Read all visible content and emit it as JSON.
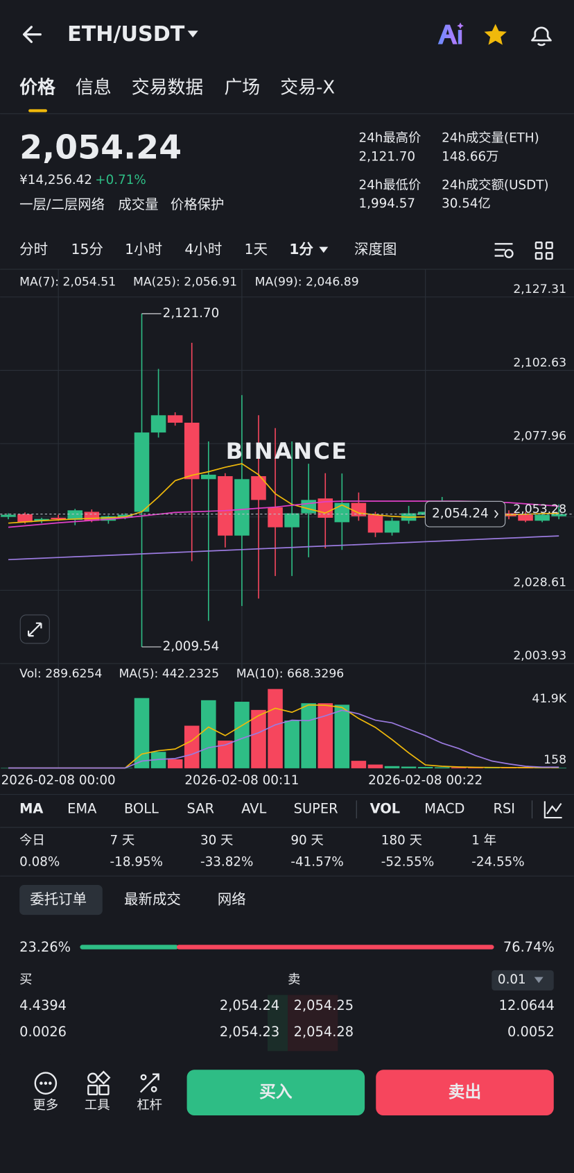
{
  "header": {
    "pair": "ETH/USDT"
  },
  "tabs": [
    "价格",
    "信息",
    "交易数据",
    "广场",
    "交易-X"
  ],
  "price": {
    "last": "2,054.24",
    "cny": "¥14,256.42",
    "change": "+0.71%",
    "links": [
      "一层/二层网络",
      "成交量",
      "价格保护"
    ]
  },
  "stats": [
    {
      "label": "24h最高价",
      "value": "2,121.70"
    },
    {
      "label": "24h成交量(ETH)",
      "value": "148.66万"
    },
    {
      "label": "24h最低价",
      "value": "1,994.57"
    },
    {
      "label": "24h成交额(USDT)",
      "value": "30.54亿"
    }
  ],
  "intervals": [
    "分时",
    "15分",
    "1小时",
    "4小时",
    "1天",
    "1分",
    "深度图"
  ],
  "watermark": "BINANCE",
  "chart_data": [
    {
      "type": "candlestick",
      "up_color": "#2ebd85",
      "down_color": "#f6465d",
      "open": [
        2053.3,
        2054.2,
        2052.0,
        2053.0,
        2052.3,
        2055.0,
        2052.0,
        2053.0,
        2055.0,
        2081.7,
        2087.5,
        2085.0,
        2066.0,
        2067.0,
        2047.0,
        2067.0,
        2056.5,
        2049.8,
        2054.5,
        2059.5,
        2051.5,
        2058.0,
        2054.0,
        2048.0,
        2052.0,
        2054.0,
        2054.5,
        2056.5,
        2055.0,
        2053.6,
        2054.5,
        2054.0,
        2052.0,
        2053.5
      ],
      "high": [
        2054.5,
        2054.8,
        2053.0,
        2054.0,
        2056.0,
        2055.8,
        2053.8,
        2054.5,
        2121.7,
        2103.1,
        2088.5,
        2111.9,
        2078.7,
        2068.0,
        2094.3,
        2087.5,
        2083.2,
        2078.7,
        2071.2,
        2068.0,
        2067.9,
        2061.5,
        2055.0,
        2053.0,
        2057.0,
        2057.0,
        2060.0,
        2057.0,
        2057.0,
        2056.0,
        2055.5,
        2055.0,
        2054.5,
        2057.5
      ],
      "low": [
        2052.5,
        2051.0,
        2051.2,
        2052.0,
        2050.5,
        2051.5,
        2051.0,
        2052.5,
        2009.54,
        2080.0,
        2084.0,
        2038.4,
        2018.3,
        2043.0,
        2023.3,
        2025.8,
        2033.4,
        2033.4,
        2039.7,
        2042.7,
        2042.2,
        2052.0,
        2046.5,
        2047.0,
        2051.0,
        2053.0,
        2052.0,
        2053.5,
        2052.0,
        2052.5,
        2052.5,
        2051.5,
        2051.5,
        2052.5
      ],
      "close": [
        2054.0,
        2051.5,
        2052.6,
        2052.5,
        2055.5,
        2052.0,
        2053.5,
        2054.0,
        2081.7,
        2087.5,
        2085.0,
        2066.0,
        2067.5,
        2047.0,
        2066.0,
        2059.0,
        2049.8,
        2054.5,
        2059.0,
        2053.0,
        2058.0,
        2053.5,
        2048.0,
        2052.0,
        2054.5,
        2055.0,
        2056.5,
        2055.0,
        2054.0,
        2055.0,
        2053.5,
        2052.0,
        2054.0,
        2054.24
      ],
      "series": [
        {
          "name": "MA(7): 2,054.51",
          "color": "#f0b90b",
          "values": [
            2051.2,
            2051.6,
            2052.0,
            2052.3,
            2052.6,
            2052.8,
            2053.0,
            2053.3,
            2055.0,
            2060.0,
            2065.5,
            2067.3,
            2068.5,
            2070.0,
            2071.2,
            2067.5,
            2061.1,
            2057.5,
            2056.0,
            2054.6,
            2057.3,
            2054.6,
            2054.0,
            2053.5,
            2053.2,
            2053.3,
            2053.6,
            2054.0,
            2054.2,
            2054.1,
            2054.0,
            2054.2,
            2054.4,
            2054.51
          ]
        },
        {
          "name": "MA(25): 2,056.91",
          "color": "#e040c8",
          "values": [
            2049.8,
            2050.3,
            2050.8,
            2051.3,
            2051.7,
            2052.1,
            2052.5,
            2053.0,
            2053.6,
            2054.2,
            2054.8,
            2055.0,
            2055.2,
            2055.4,
            2055.8,
            2056.2,
            2056.6,
            2057.2,
            2057.8,
            2058.4,
            2058.6,
            2058.6,
            2058.6,
            2058.6,
            2058.6,
            2058.6,
            2058.6,
            2058.6,
            2058.5,
            2058.3,
            2058.1,
            2057.7,
            2057.3,
            2056.91
          ]
        },
        {
          "name": "MA(99): 2,046.89",
          "color": "#9b7be0",
          "values": [
            2038.9,
            2039.14,
            2039.38,
            2039.63,
            2039.87,
            2040.11,
            2040.35,
            2040.59,
            2040.84,
            2041.08,
            2041.32,
            2041.56,
            2041.8,
            2042.05,
            2042.29,
            2042.53,
            2042.77,
            2043.01,
            2043.26,
            2043.5,
            2043.74,
            2043.98,
            2044.22,
            2044.47,
            2044.71,
            2044.95,
            2045.19,
            2045.43,
            2045.68,
            2045.92,
            2046.16,
            2046.4,
            2046.65,
            2046.89
          ]
        }
      ],
      "ylim": [
        2003.93,
        2127.31
      ],
      "yticks": [
        {
          "value": 2127.31,
          "label": "2,127.31"
        },
        {
          "value": 2102.63,
          "label": "2,102.63"
        },
        {
          "value": 2077.96,
          "label": "2,077.96"
        },
        {
          "value": 2053.28,
          "label": "2,053.28"
        },
        {
          "value": 2028.61,
          "label": "2,028.61"
        },
        {
          "value": 2003.93,
          "label": "2,003.93"
        }
      ],
      "grid": true,
      "high_label": {
        "value": 2121.7,
        "label": "2,121.70"
      },
      "low_label": {
        "value": 2009.54,
        "label": "2,009.54"
      },
      "last_price": {
        "value": 2054.24,
        "label": "2,054.24"
      }
    },
    {
      "type": "bar",
      "name": "Vol: 289.6254",
      "x": [
        null,
        null,
        null,
        "2026-02-08 00:00",
        null,
        null,
        null,
        null,
        null,
        null,
        null,
        null,
        null,
        null,
        "2026-02-08 00:11",
        null,
        null,
        null,
        null,
        null,
        null,
        null,
        null,
        null,
        null,
        "2026-02-08 00:22",
        null,
        null,
        null,
        null,
        null,
        null,
        null,
        null
      ],
      "values": [
        150,
        180,
        120,
        160,
        200,
        170,
        140,
        190,
        41900,
        9800,
        5350,
        25400,
        40600,
        16500,
        39700,
        34800,
        47300,
        28500,
        38800,
        38800,
        37900,
        4460,
        2230,
        1300,
        1000,
        800,
        600,
        500,
        450,
        400,
        380,
        350,
        320,
        289.6254
      ],
      "series": [
        {
          "name": "MA(5): 442.2325",
          "color": "#f0b90b",
          "values": [
            160,
            165,
            160,
            165,
            170,
            165,
            160,
            170,
            8500,
            10500,
            11500,
            16500,
            24600,
            19500,
            25500,
            31400,
            35800,
            33400,
            37800,
            37600,
            36300,
            29700,
            24400,
            17100,
            9200,
            2000,
            1200,
            800,
            600,
            500,
            450,
            420,
            400,
            442.2325
          ]
        },
        {
          "name": "MA(10): 668.3296",
          "color": "#9b7be0",
          "values": [
            165,
            165,
            165,
            165,
            165,
            165,
            165,
            165,
            4300,
            5300,
            5800,
            8300,
            12300,
            13900,
            17800,
            21200,
            25900,
            28700,
            28400,
            31300,
            34600,
            32500,
            28700,
            27100,
            23300,
            19500,
            15000,
            11800,
            7600,
            4300,
            2600,
            1200,
            700,
            668.3296
          ]
        }
      ],
      "ylim": [
        0,
        47300
      ],
      "yticks": [
        {
          "value": 41900,
          "label": "41.9K"
        },
        158
      ]
    }
  ],
  "indicators": [
    "MA",
    "EMA",
    "BOLL",
    "SAR",
    "AVL",
    "SUPER",
    "VOL",
    "MACD",
    "RSI"
  ],
  "performance": [
    {
      "period": "今日",
      "change": "0.08%"
    },
    {
      "period": "7 天",
      "change": "-18.95%"
    },
    {
      "period": "30 天",
      "change": "-33.82%"
    },
    {
      "period": "90 天",
      "change": "-41.57%"
    },
    {
      "period": "180 天",
      "change": "-52.55%"
    },
    {
      "period": "1 年",
      "change": "-24.55%"
    }
  ],
  "book_tabs": [
    "委托订单",
    "最新成交",
    "网络"
  ],
  "book": {
    "bid_ratio": {
      "value": 23.26,
      "label": "23.26%"
    },
    "ask_ratio": {
      "value": 76.74,
      "label": "76.74%"
    },
    "bid_label": "买",
    "ask_label": "卖",
    "precision": "0.01",
    "rows": [
      [
        "4.4394",
        "2,054.24",
        "2,054.25",
        "12.0644"
      ],
      [
        "0.0026",
        "2,054.23",
        "2,054.28",
        "0.0052"
      ]
    ]
  },
  "bottom": {
    "tools": [
      "更多",
      "工具",
      "杠杆"
    ],
    "buy": "买入",
    "sell": "卖出"
  }
}
